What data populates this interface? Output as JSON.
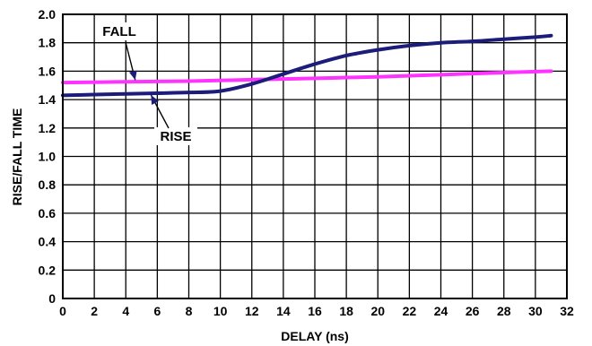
{
  "chart_data": {
    "type": "line",
    "title": "",
    "xlabel": "DELAY (ns)",
    "ylabel": "RISE/FALL TIME",
    "xlim": [
      0,
      32
    ],
    "ylim": [
      0,
      2.0
    ],
    "x_ticks": [
      "0",
      "2",
      "4",
      "6",
      "8",
      "10",
      "12",
      "14",
      "16",
      "18",
      "20",
      "22",
      "24",
      "26",
      "28",
      "30",
      "32"
    ],
    "y_ticks": [
      "0",
      "0.2",
      "0.4",
      "0.6",
      "0.8",
      "1.0",
      "1.2",
      "1.4",
      "1.6",
      "1.8",
      "2.0"
    ],
    "grid": true,
    "series": [
      {
        "name": "RISE",
        "color": "#1c1c7a",
        "x": [
          0,
          2,
          4,
          6,
          8,
          10,
          12,
          14,
          16,
          18,
          20,
          22,
          24,
          26,
          28,
          30,
          31
        ],
        "y": [
          1.43,
          1.435,
          1.44,
          1.445,
          1.45,
          1.46,
          1.51,
          1.58,
          1.65,
          1.71,
          1.75,
          1.78,
          1.8,
          1.81,
          1.825,
          1.84,
          1.85
        ]
      },
      {
        "name": "FALL",
        "color": "#ff33ff",
        "x": [
          0,
          4,
          8,
          12,
          16,
          20,
          24,
          28,
          31
        ],
        "y": [
          1.52,
          1.525,
          1.53,
          1.54,
          1.55,
          1.56,
          1.575,
          1.59,
          1.6
        ]
      }
    ],
    "annotations": [
      {
        "text": "FALL",
        "points_to_series": "FALL"
      },
      {
        "text": "RISE",
        "points_to_series": "RISE"
      }
    ]
  }
}
